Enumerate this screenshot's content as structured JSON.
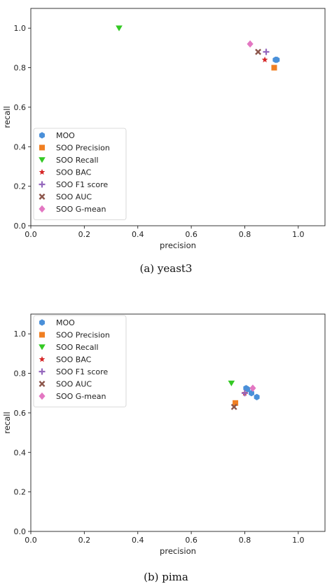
{
  "chart_data": [
    {
      "type": "scatter",
      "caption": "(a) yeast3",
      "xlabel": "precision",
      "ylabel": "recall",
      "xlim": [
        0.0,
        1.1
      ],
      "ylim": [
        0.0,
        1.1
      ],
      "xticks": [
        "0.0",
        "0.2",
        "0.4",
        "0.6",
        "0.8",
        "1.0"
      ],
      "yticks": [
        "0.0",
        "0.2",
        "0.4",
        "0.6",
        "0.8",
        "1.0"
      ],
      "legend_position": "lower-left",
      "series": [
        {
          "name": "MOO",
          "marker": "hexagon",
          "color": "#4a90d9",
          "points": [
            [
              0.915,
              0.84
            ],
            [
              0.92,
              0.84
            ]
          ]
        },
        {
          "name": "SOO Precision",
          "marker": "square",
          "color": "#f07f22",
          "points": [
            [
              0.91,
              0.8
            ]
          ]
        },
        {
          "name": "SOO Recall",
          "marker": "triangle-down",
          "color": "#34c924",
          "points": [
            [
              0.33,
              1.0
            ]
          ]
        },
        {
          "name": "SOO BAC",
          "marker": "star",
          "color": "#d62728",
          "points": [
            [
              0.875,
              0.84
            ]
          ]
        },
        {
          "name": "SOO F1 score",
          "marker": "plus",
          "color": "#9467bd",
          "points": [
            [
              0.88,
              0.88
            ]
          ]
        },
        {
          "name": "SOO AUC",
          "marker": "x",
          "color": "#8c564b",
          "points": [
            [
              0.85,
              0.88
            ]
          ]
        },
        {
          "name": "SOO G-mean",
          "marker": "diamond",
          "color": "#e377c2",
          "points": [
            [
              0.82,
              0.92
            ]
          ]
        }
      ]
    },
    {
      "type": "scatter",
      "caption": "(b) pima",
      "xlabel": "precision",
      "ylabel": "recall",
      "xlim": [
        0.0,
        1.1
      ],
      "ylim": [
        0.0,
        1.1
      ],
      "xticks": [
        "0.0",
        "0.2",
        "0.4",
        "0.6",
        "0.8",
        "1.0"
      ],
      "yticks": [
        "0.0",
        "0.2",
        "0.4",
        "0.6",
        "0.8",
        "1.0"
      ],
      "legend_position": "upper-left",
      "series": [
        {
          "name": "MOO",
          "marker": "hexagon",
          "color": "#4a90d9",
          "points": [
            [
              0.805,
              0.725
            ],
            [
              0.81,
              0.72
            ],
            [
              0.825,
              0.7
            ],
            [
              0.845,
              0.68
            ]
          ]
        },
        {
          "name": "SOO Precision",
          "marker": "square",
          "color": "#f07f22",
          "points": [
            [
              0.765,
              0.65
            ]
          ]
        },
        {
          "name": "SOO Recall",
          "marker": "triangle-down",
          "color": "#34c924",
          "points": [
            [
              0.75,
              0.75
            ]
          ]
        },
        {
          "name": "SOO BAC",
          "marker": "star",
          "color": "#d62728",
          "points": [
            [
              0.8,
              0.7
            ]
          ]
        },
        {
          "name": "SOO F1 score",
          "marker": "plus",
          "color": "#9467bd",
          "points": [
            [
              0.8,
              0.7
            ]
          ]
        },
        {
          "name": "SOO AUC",
          "marker": "x",
          "color": "#8c564b",
          "points": [
            [
              0.76,
              0.63
            ]
          ]
        },
        {
          "name": "SOO G-mean",
          "marker": "diamond",
          "color": "#e377c2",
          "points": [
            [
              0.83,
              0.725
            ]
          ]
        }
      ]
    }
  ]
}
